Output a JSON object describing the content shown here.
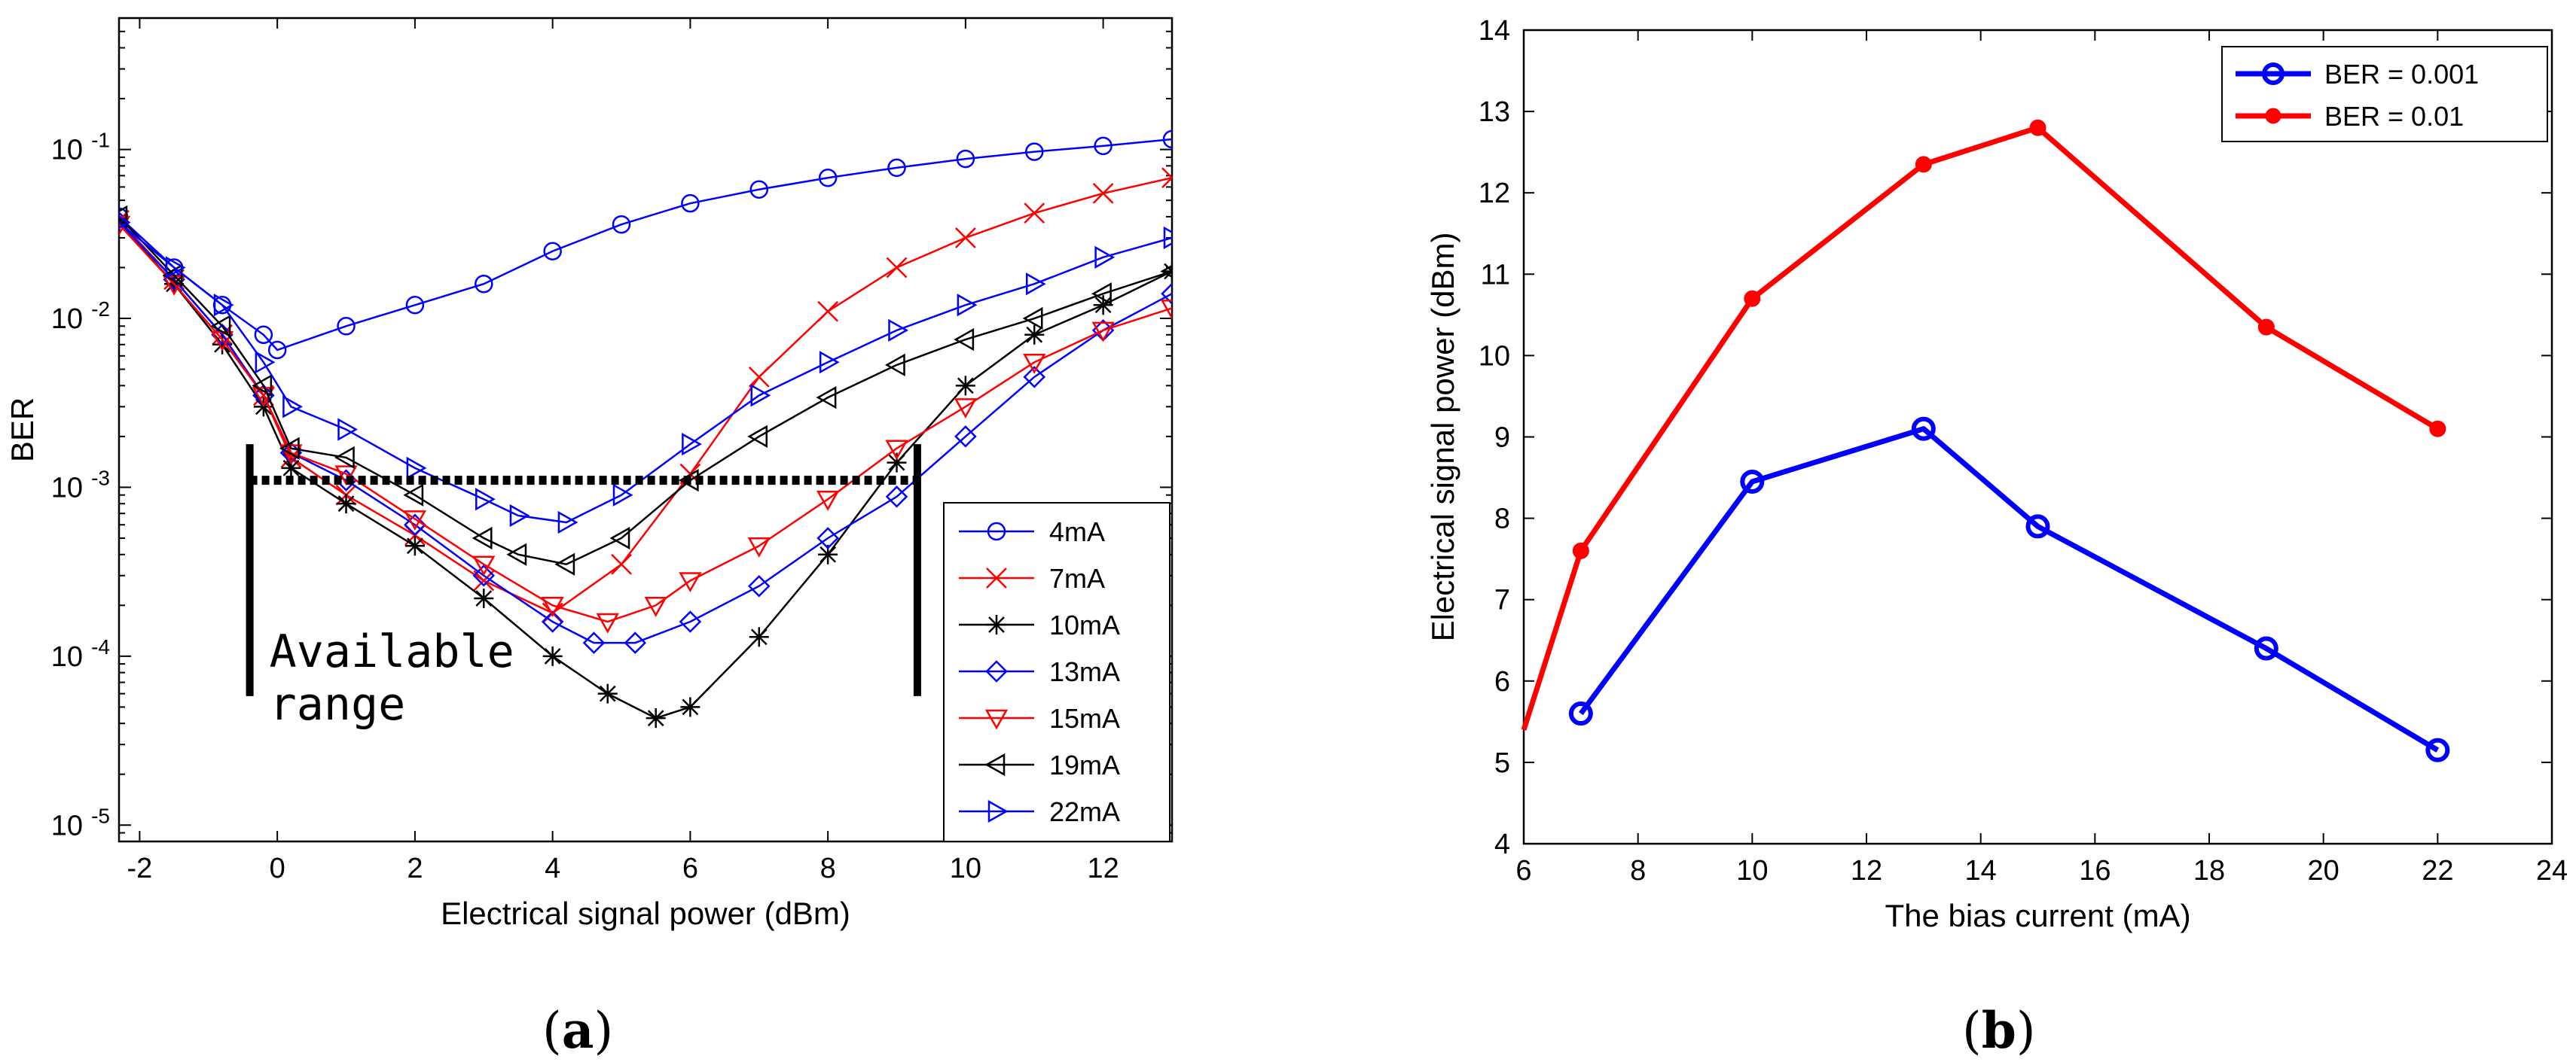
{
  "chart_data": [
    {
      "type": "line",
      "panel": "(a)",
      "xlabel": "Electrical signal power (dBm)",
      "ylabel": "BER",
      "xlim": [
        -2.3,
        13
      ],
      "ylim": [
        8e-06,
        0.6
      ],
      "yscale": "log",
      "xticks": [
        -2,
        0,
        2,
        4,
        6,
        8,
        10,
        12
      ],
      "yticks": [
        {
          "value": 0.1,
          "base": "10",
          "exp": "-1"
        },
        {
          "value": 0.01,
          "base": "10",
          "exp": "-2"
        },
        {
          "value": 0.001,
          "base": "10",
          "exp": "-3"
        },
        {
          "value": 0.0001,
          "base": "10",
          "exp": "-4"
        },
        {
          "value": 1e-05,
          "base": "10",
          "exp": "-5"
        }
      ],
      "grid": false,
      "legend_position": "bottom-right",
      "annotation": {
        "text_line1": "Available",
        "text_line2": "range",
        "x_range": [
          -0.4,
          9.3
        ],
        "threshold": 0.0011
      },
      "series": [
        {
          "name": "4mA",
          "color": "#0000ff",
          "marker": "circle",
          "x": [
            -2.3,
            -1.5,
            -0.8,
            -0.2,
            0,
            1,
            2,
            3,
            4,
            5,
            6,
            7,
            8,
            9,
            10,
            11,
            12,
            13
          ],
          "y": [
            0.04,
            0.02,
            0.012,
            0.008,
            0.0065,
            0.009,
            0.012,
            0.016,
            0.025,
            0.036,
            0.048,
            0.058,
            0.068,
            0.078,
            0.088,
            0.097,
            0.105,
            0.115
          ]
        },
        {
          "name": "7mA",
          "color": "#ff0000",
          "marker": "x",
          "x": [
            -2.3,
            -1.5,
            -0.8,
            -0.2,
            0.2,
            1,
            2,
            3,
            4,
            5,
            6,
            7,
            8,
            9,
            10,
            11,
            12,
            13
          ],
          "y": [
            0.038,
            0.017,
            0.008,
            0.0035,
            0.0015,
            0.0009,
            0.00052,
            0.00028,
            0.00018,
            0.00035,
            0.0012,
            0.0045,
            0.011,
            0.02,
            0.03,
            0.042,
            0.055,
            0.068
          ]
        },
        {
          "name": "10mA",
          "color": "#000000",
          "marker": "asterisk",
          "x": [
            -2.3,
            -1.5,
            -0.8,
            -0.2,
            0.2,
            1,
            2,
            3,
            4,
            4.8,
            5.5,
            6,
            7,
            8,
            9,
            10,
            11,
            12,
            13
          ],
          "y": [
            0.037,
            0.016,
            0.007,
            0.003,
            0.0013,
            0.0008,
            0.00045,
            0.00022,
            0.0001,
            6e-05,
            4.3e-05,
            5e-05,
            0.00013,
            0.0004,
            0.0014,
            0.004,
            0.008,
            0.012,
            0.019
          ]
        },
        {
          "name": "13mA",
          "color": "#0000ff",
          "marker": "diamond",
          "x": [
            -2.3,
            -1.5,
            -0.8,
            -0.2,
            0.2,
            1,
            2,
            3,
            4,
            4.6,
            5.2,
            6,
            7,
            8,
            9,
            10,
            11,
            12,
            13
          ],
          "y": [
            0.037,
            0.017,
            0.008,
            0.0035,
            0.0016,
            0.0011,
            0.0006,
            0.0003,
            0.00016,
            0.00012,
            0.00012,
            0.00016,
            0.00026,
            0.0005,
            0.00088,
            0.002,
            0.0045,
            0.0085,
            0.014
          ]
        },
        {
          "name": "15mA",
          "color": "#ff0000",
          "marker": "triangle-down",
          "x": [
            -2.3,
            -1.5,
            -0.8,
            -0.2,
            0.2,
            1,
            2,
            3,
            4,
            4.8,
            5.5,
            6,
            7,
            8,
            9,
            10,
            11,
            12,
            13
          ],
          "y": [
            0.036,
            0.016,
            0.0075,
            0.0035,
            0.0016,
            0.0012,
            0.00065,
            0.00035,
            0.0002,
            0.00016,
            0.0002,
            0.00028,
            0.00045,
            0.00085,
            0.0017,
            0.003,
            0.0055,
            0.0085,
            0.0115
          ]
        },
        {
          "name": "19mA",
          "color": "#000000",
          "marker": "triangle-left",
          "x": [
            -2.3,
            -1.5,
            -0.8,
            -0.2,
            0.2,
            1,
            2,
            3,
            3.5,
            4.2,
            5,
            6,
            7,
            8,
            9,
            10,
            11,
            12,
            13
          ],
          "y": [
            0.04,
            0.018,
            0.009,
            0.004,
            0.0017,
            0.0015,
            0.0009,
            0.0005,
            0.0004,
            0.00035,
            0.0005,
            0.0011,
            0.002,
            0.0034,
            0.0053,
            0.0075,
            0.01,
            0.014,
            0.019
          ]
        },
        {
          "name": "22mA",
          "color": "#0000ff",
          "marker": "triangle-right",
          "x": [
            -2.3,
            -1.5,
            -0.8,
            -0.2,
            0.2,
            1,
            2,
            3,
            3.5,
            4.2,
            5,
            6,
            7,
            8,
            9,
            10,
            11,
            12,
            13
          ],
          "y": [
            0.037,
            0.02,
            0.012,
            0.0055,
            0.003,
            0.0022,
            0.0013,
            0.00085,
            0.00068,
            0.00062,
            0.0009,
            0.0018,
            0.0035,
            0.0055,
            0.0085,
            0.012,
            0.016,
            0.023,
            0.03
          ]
        }
      ]
    },
    {
      "type": "line",
      "panel": "(b)",
      "xlabel": "The bias current (mA)",
      "ylabel": "Electrical signal power (dBm)",
      "xlim": [
        6,
        24
      ],
      "ylim": [
        4,
        14
      ],
      "xticks": [
        6,
        8,
        10,
        12,
        14,
        16,
        18,
        20,
        22,
        24
      ],
      "yticks": [
        4,
        5,
        6,
        7,
        8,
        9,
        10,
        11,
        12,
        13,
        14
      ],
      "grid": false,
      "legend_position": "top-right",
      "series": [
        {
          "name": "BER = 0.001",
          "color": "#0000ff",
          "marker": "circle",
          "x": [
            7,
            10,
            13,
            15,
            19,
            22
          ],
          "y": [
            5.6,
            8.45,
            9.1,
            7.9,
            6.4,
            5.15
          ]
        },
        {
          "name": "BER = 0.01",
          "color": "#ff0000",
          "marker": "dot",
          "x": [
            6,
            7,
            10,
            13,
            15,
            19,
            22
          ],
          "y": [
            5.4,
            7.6,
            10.7,
            12.35,
            12.8,
            10.35,
            9.1
          ]
        }
      ]
    }
  ],
  "captions": {
    "a": "(a)",
    "b": "(b)"
  }
}
